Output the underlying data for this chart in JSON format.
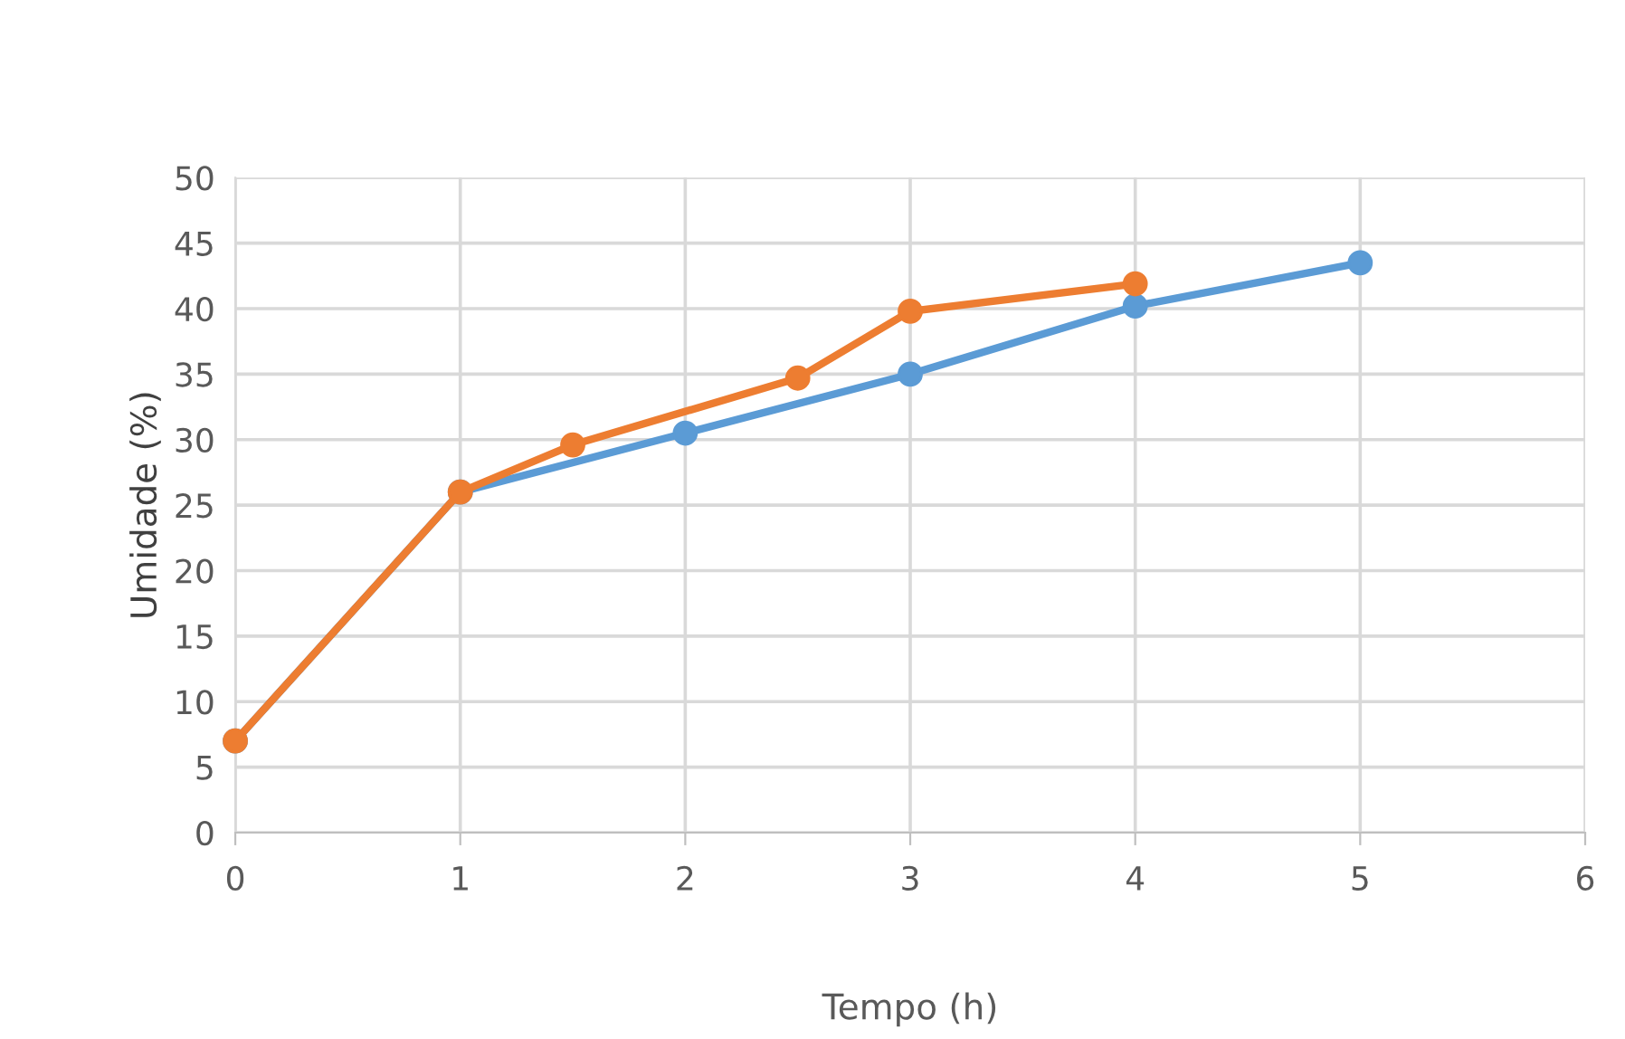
{
  "chart_data": {
    "type": "line",
    "xlabel": "Tempo (h)",
    "ylabel": "Umidade (%)",
    "series": [
      {
        "color": "#5b9bd5",
        "x": [
          0,
          1,
          2,
          3,
          4,
          5
        ],
        "values": [
          7,
          26,
          30.5,
          35,
          40.2,
          43.5
        ]
      },
      {
        "color": "#ed7d31",
        "x": [
          0,
          1,
          1.5,
          2.5,
          3,
          4
        ],
        "values": [
          7,
          26,
          29.6,
          34.7,
          39.8,
          41.9
        ]
      }
    ],
    "xlim": [
      0,
      6
    ],
    "xticks": [
      0,
      1,
      2,
      3,
      4,
      5,
      6
    ],
    "ylim": [
      0,
      50
    ],
    "yticks": [
      0,
      5,
      10,
      15,
      20,
      25,
      30,
      35,
      40,
      45,
      50
    ],
    "grid": true,
    "marker": "circle",
    "line_style": "solid"
  }
}
